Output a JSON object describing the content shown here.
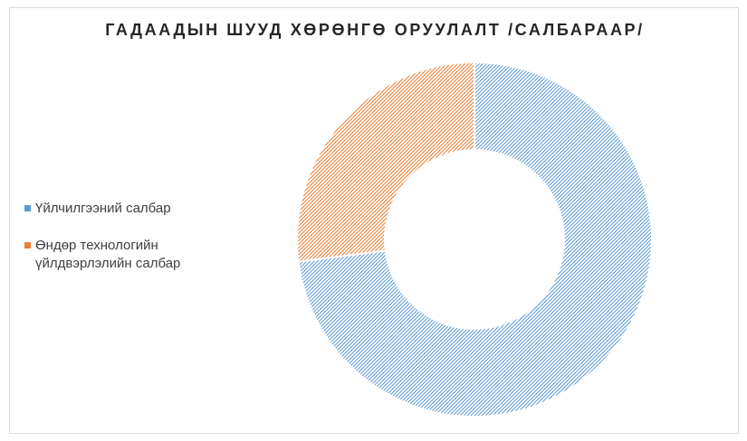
{
  "chart_data": {
    "type": "pie",
    "title": "ГАДААДЫН ШУУД ХӨРӨНГӨ ОРУУЛАЛТ /САЛБАРААР/",
    "categories": [
      "Үйлчилгээний салбар",
      "Өндөр технологийн үйлдвэрлэлийн салбар"
    ],
    "values": [
      73,
      27
    ],
    "colors": [
      "#5b9bd5",
      "#ed7d31"
    ],
    "style": "donut",
    "legend": "left"
  }
}
